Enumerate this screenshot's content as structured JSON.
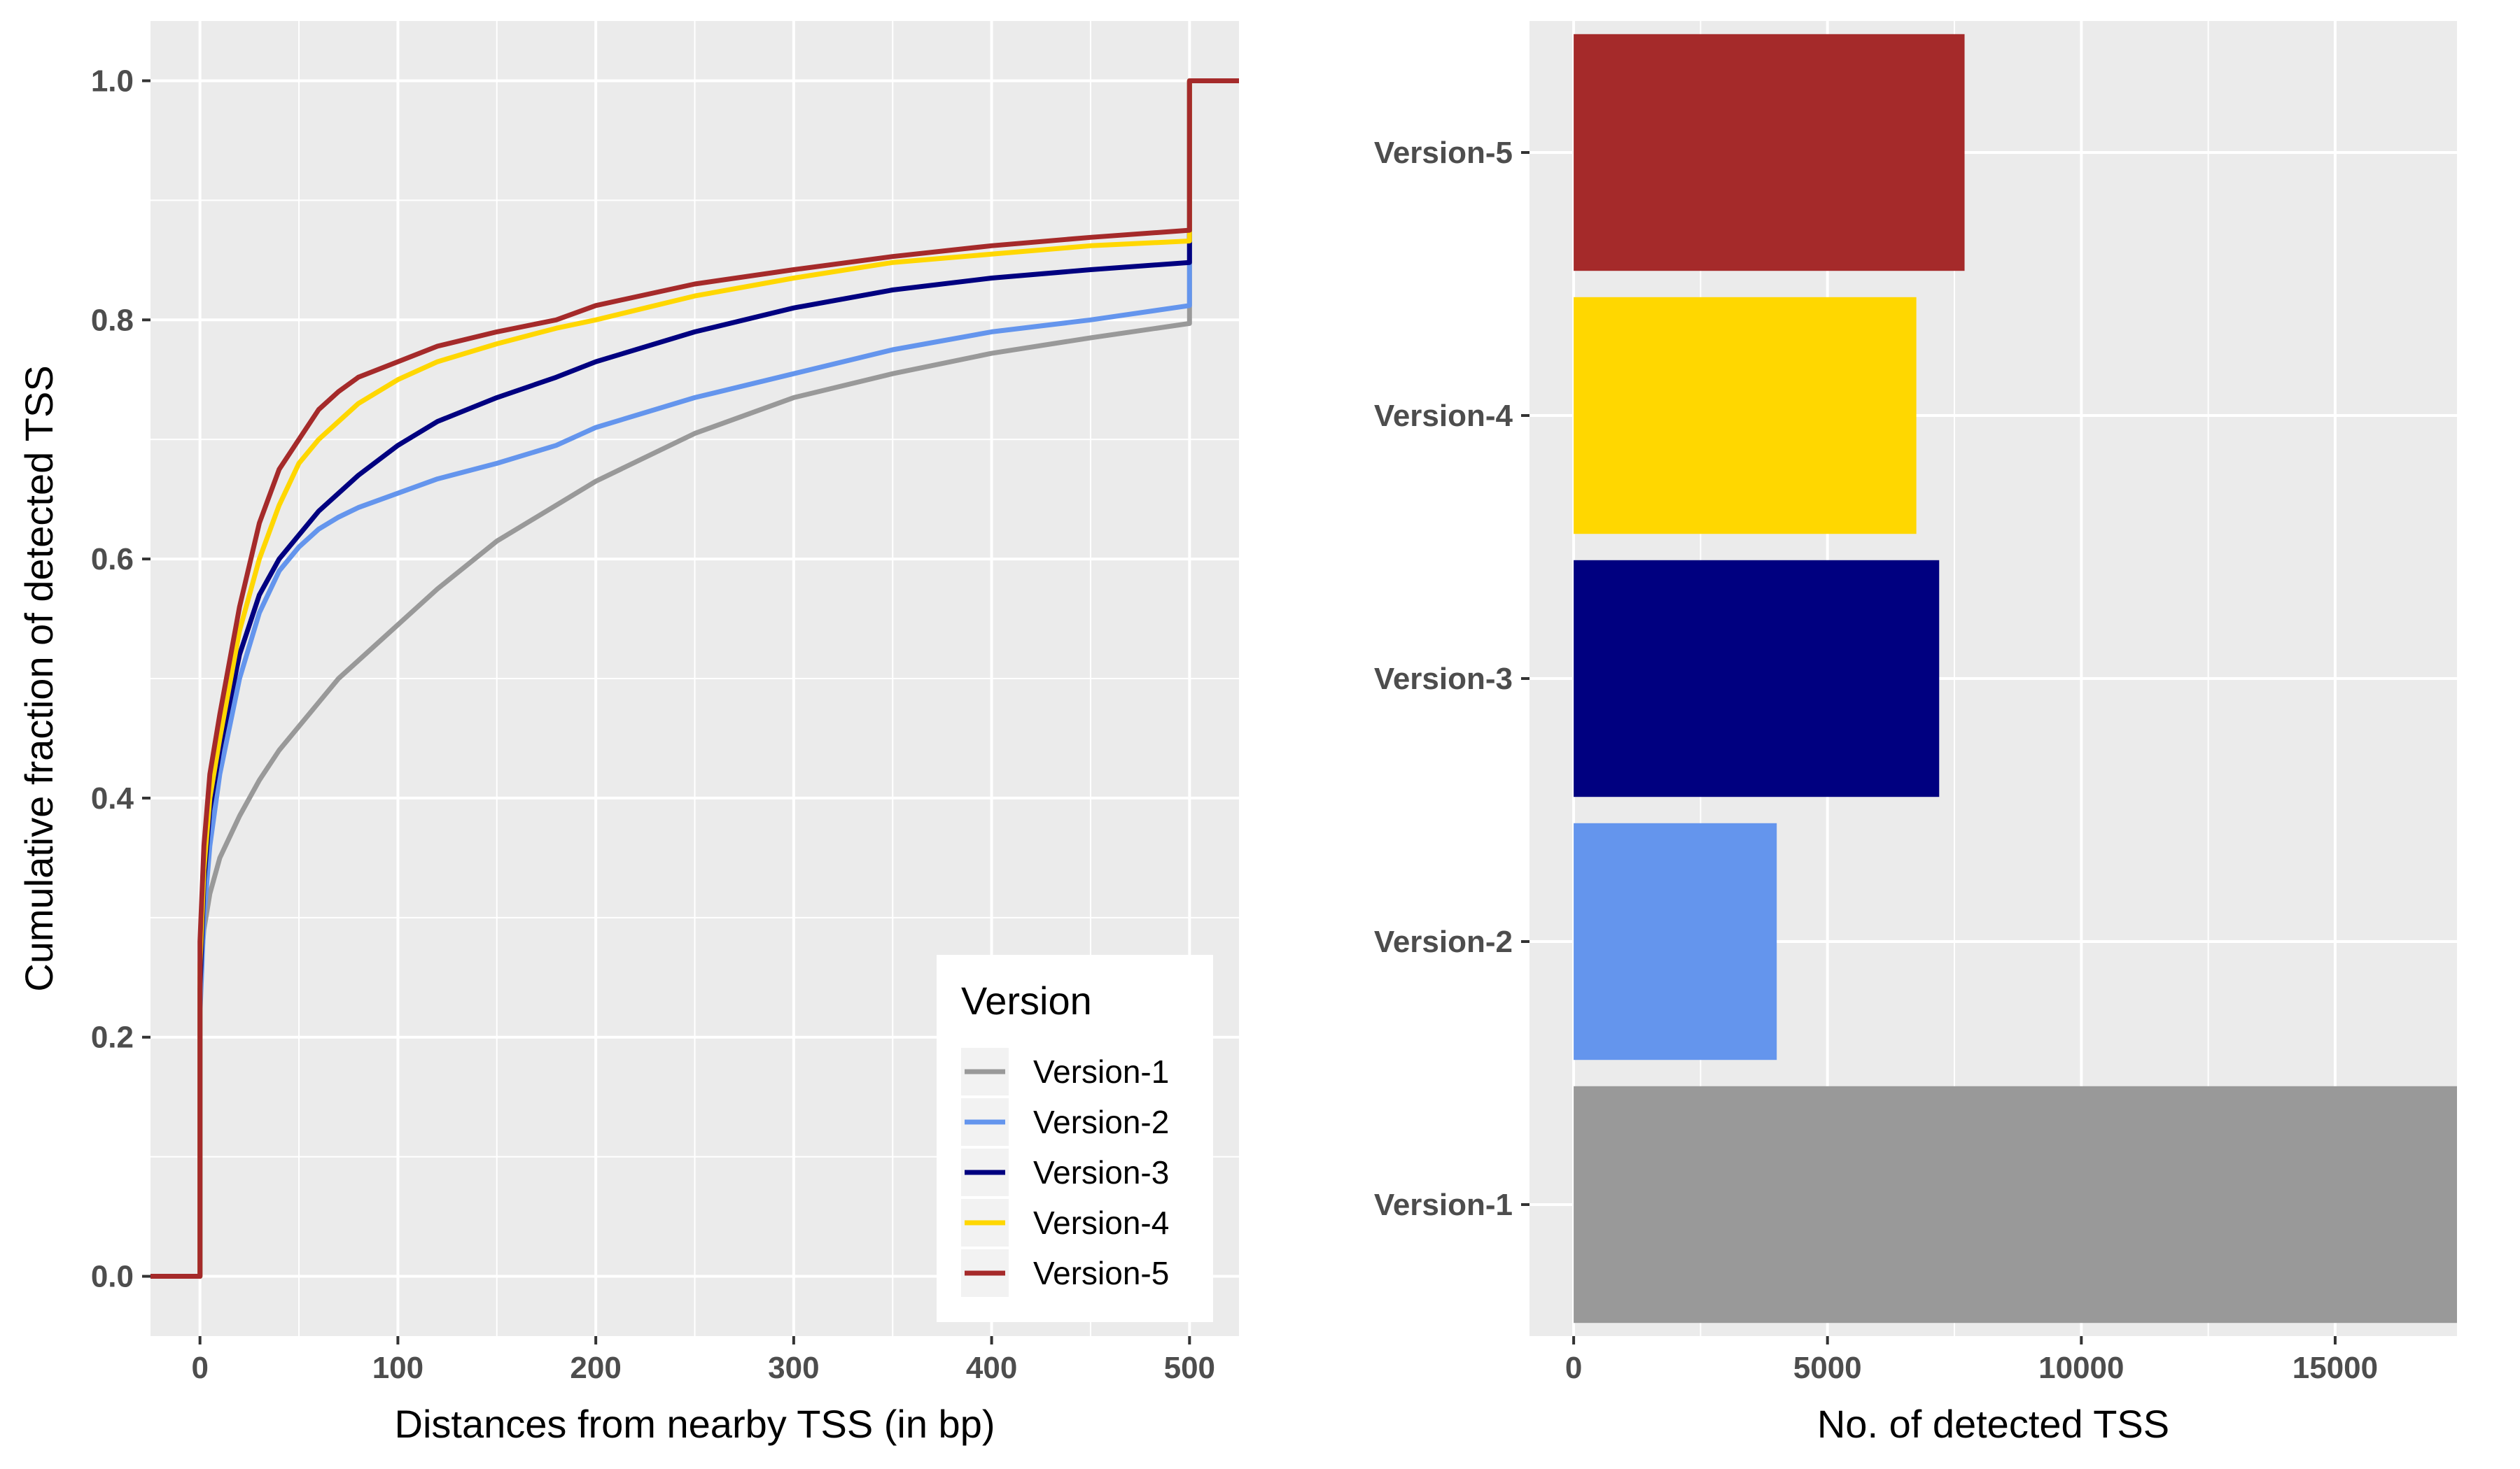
{
  "chart_data": [
    {
      "type": "line",
      "subtype": "ecdf",
      "xlabel": "Distances from nearby TSS (in bp)",
      "ylabel": "Cumulative fraction of detected TSS",
      "xlim": [
        -25,
        525
      ],
      "ylim": [
        -0.05,
        1.05
      ],
      "x_ticks": [
        0,
        100,
        200,
        300,
        400,
        500
      ],
      "y_ticks": [
        0.0,
        0.2,
        0.4,
        0.6,
        0.8,
        1.0
      ],
      "y_tick_labels": [
        "0.0",
        "0.2",
        "0.4",
        "0.6",
        "0.8",
        "1.0"
      ],
      "grid": true,
      "legend": {
        "title": "Version",
        "position": "bottom-right"
      },
      "series": [
        {
          "name": "Version-1",
          "color": "#999999",
          "x": [
            -25,
            0,
            0,
            2,
            5,
            10,
            20,
            30,
            40,
            50,
            60,
            70,
            80,
            100,
            120,
            150,
            180,
            200,
            250,
            300,
            350,
            400,
            450,
            500,
            500,
            525
          ],
          "y": [
            0,
            0,
            0.25,
            0.29,
            0.32,
            0.35,
            0.385,
            0.415,
            0.44,
            0.46,
            0.48,
            0.5,
            0.515,
            0.545,
            0.575,
            0.615,
            0.645,
            0.665,
            0.705,
            0.735,
            0.755,
            0.772,
            0.785,
            0.797,
            1.0,
            1.0
          ]
        },
        {
          "name": "Version-2",
          "color": "#6495ed",
          "x": [
            -25,
            0,
            0,
            2,
            5,
            10,
            20,
            30,
            40,
            50,
            60,
            70,
            80,
            100,
            120,
            150,
            180,
            200,
            250,
            300,
            350,
            400,
            450,
            500,
            500,
            525
          ],
          "y": [
            0,
            0,
            0.22,
            0.3,
            0.36,
            0.42,
            0.5,
            0.555,
            0.59,
            0.61,
            0.625,
            0.635,
            0.643,
            0.655,
            0.667,
            0.68,
            0.695,
            0.71,
            0.735,
            0.755,
            0.775,
            0.79,
            0.8,
            0.812,
            1.0,
            1.0
          ]
        },
        {
          "name": "Version-3",
          "color": "#000080",
          "x": [
            -25,
            0,
            0,
            2,
            5,
            10,
            20,
            30,
            40,
            50,
            60,
            70,
            80,
            100,
            120,
            150,
            180,
            200,
            250,
            300,
            350,
            400,
            450,
            500,
            500,
            525
          ],
          "y": [
            0,
            0,
            0.24,
            0.33,
            0.39,
            0.44,
            0.52,
            0.57,
            0.6,
            0.62,
            0.64,
            0.655,
            0.67,
            0.695,
            0.715,
            0.735,
            0.752,
            0.765,
            0.79,
            0.81,
            0.825,
            0.835,
            0.842,
            0.848,
            1.0,
            1.0
          ]
        },
        {
          "name": "Version-4",
          "color": "#ffd700",
          "x": [
            -25,
            0,
            0,
            2,
            5,
            10,
            20,
            30,
            40,
            50,
            60,
            70,
            80,
            100,
            120,
            150,
            180,
            200,
            250,
            300,
            350,
            400,
            450,
            500,
            500,
            525
          ],
          "y": [
            0,
            0,
            0.26,
            0.34,
            0.4,
            0.45,
            0.54,
            0.6,
            0.645,
            0.68,
            0.7,
            0.715,
            0.73,
            0.75,
            0.765,
            0.78,
            0.793,
            0.8,
            0.82,
            0.835,
            0.848,
            0.855,
            0.862,
            0.866,
            1.0,
            1.0
          ]
        },
        {
          "name": "Version-5",
          "color": "#a52a2a",
          "x": [
            -25,
            0,
            0,
            2,
            5,
            10,
            20,
            30,
            40,
            50,
            60,
            70,
            80,
            100,
            120,
            150,
            180,
            200,
            250,
            300,
            350,
            400,
            450,
            500,
            500,
            525
          ],
          "y": [
            0,
            0,
            0.28,
            0.36,
            0.42,
            0.47,
            0.56,
            0.63,
            0.675,
            0.7,
            0.725,
            0.74,
            0.752,
            0.765,
            0.778,
            0.79,
            0.8,
            0.812,
            0.83,
            0.842,
            0.853,
            0.862,
            0.869,
            0.875,
            1.0,
            1.0
          ]
        }
      ]
    },
    {
      "type": "bar",
      "orientation": "horizontal",
      "xlabel": "No. of detected TSS",
      "ylabel": "",
      "xlim": [
        -870,
        17400
      ],
      "x_ticks": [
        0,
        5000,
        10000,
        15000
      ],
      "grid": true,
      "categories": [
        "Version-1",
        "Version-2",
        "Version-3",
        "Version-4",
        "Version-5"
      ],
      "values": [
        17400,
        4000,
        7200,
        6750,
        7700
      ],
      "colors": [
        "#999999",
        "#6495ed",
        "#000080",
        "#ffd700",
        "#a52a2a"
      ]
    }
  ]
}
